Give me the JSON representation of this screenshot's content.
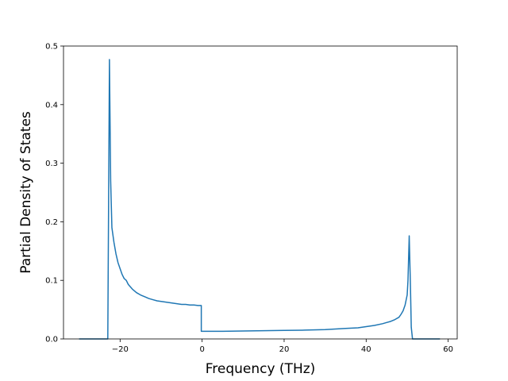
{
  "chart_data": {
    "type": "line",
    "title": "",
    "xlabel": "Frequency (THz)",
    "ylabel": "Partial Density of States",
    "xlim": [
      -33.8,
      62.2
    ],
    "ylim": [
      0,
      0.5
    ],
    "x_ticks": [
      -20,
      0,
      20,
      40,
      60
    ],
    "x_tick_labels": [
      "−20",
      "0",
      "20",
      "40",
      "60"
    ],
    "y_ticks": [
      0.0,
      0.1,
      0.2,
      0.3,
      0.4,
      0.5
    ],
    "y_tick_labels": [
      "0.0",
      "0.1",
      "0.2",
      "0.3",
      "0.4",
      "0.5"
    ],
    "grid": false,
    "legend": "none",
    "series": [
      {
        "color": "#1f77b4",
        "x": [
          -30,
          -23,
          -22.6,
          -22.3,
          -22.0,
          -21.5,
          -21.0,
          -20.5,
          -20.0,
          -19.5,
          -19.0,
          -18.5,
          -18.0,
          -17.0,
          -16.0,
          -15.0,
          -14.0,
          -13.0,
          -12.0,
          -11.0,
          -10.0,
          -9.0,
          -8.0,
          -7.0,
          -6.0,
          -5.0,
          -4.0,
          -3.0,
          -2.0,
          -1.0,
          -0.2,
          -0.2,
          0,
          5,
          10,
          15,
          20,
          25,
          30,
          35,
          38,
          40,
          42,
          44,
          45,
          46,
          47,
          48,
          48.5,
          49,
          49.5,
          50,
          50.2,
          50.5,
          50.8,
          51.0,
          51.3,
          58
        ],
        "y": [
          0,
          0,
          0.477,
          0.27,
          0.19,
          0.165,
          0.145,
          0.13,
          0.12,
          0.11,
          0.103,
          0.1,
          0.093,
          0.085,
          0.079,
          0.075,
          0.072,
          0.069,
          0.067,
          0.065,
          0.064,
          0.063,
          0.062,
          0.061,
          0.06,
          0.059,
          0.059,
          0.058,
          0.058,
          0.057,
          0.057,
          0.013,
          0.013,
          0.013,
          0.0135,
          0.014,
          0.0145,
          0.015,
          0.016,
          0.018,
          0.019,
          0.021,
          0.023,
          0.026,
          0.028,
          0.03,
          0.033,
          0.037,
          0.042,
          0.048,
          0.058,
          0.075,
          0.1,
          0.176,
          0.09,
          0.02,
          0,
          0
        ]
      }
    ]
  }
}
